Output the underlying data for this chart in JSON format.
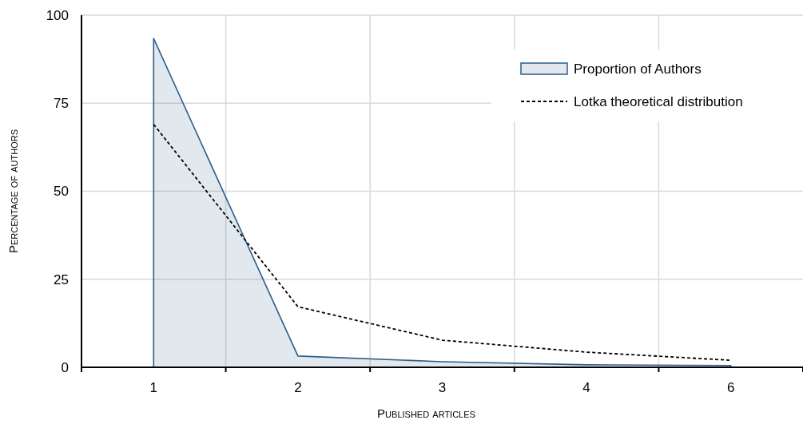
{
  "chart_data": {
    "type": "area",
    "xlabel": "Published articles",
    "ylabel": "Percentage of authors",
    "categories": [
      "1",
      "2",
      "3",
      "4",
      "6"
    ],
    "series": [
      {
        "name": "Proportion of Authors",
        "color": "#2e5c8a",
        "values": [
          93.4,
          3.2,
          1.6,
          0.7,
          0.5
        ]
      },
      {
        "name": "Lotka theoretical distribution",
        "type": "line",
        "color": "#000000",
        "line_style": "dashed",
        "values": [
          69,
          17.2,
          7.7,
          4.3,
          2.0
        ]
      }
    ],
    "ylim": [
      0,
      100
    ],
    "yticks": [
      0,
      25,
      50,
      75,
      100
    ],
    "grid": true,
    "legend": "top right"
  }
}
